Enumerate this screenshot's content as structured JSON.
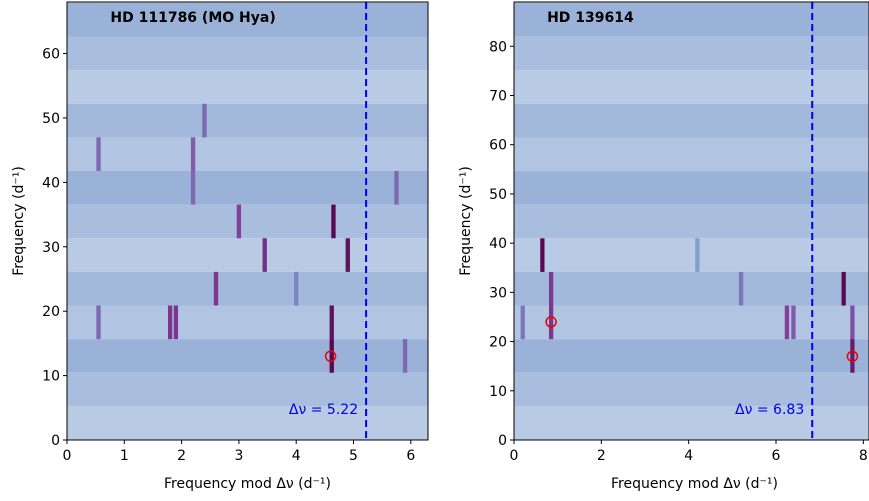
{
  "chart_data": [
    {
      "type": "echelle",
      "title": "HD 111786 (MO Hya)",
      "xlabel": "Frequency mod Δν (d⁻¹)",
      "ylabel": "Frequency (d⁻¹)",
      "xlim": [
        0,
        6.3
      ],
      "ylim": [
        0,
        68
      ],
      "xticks": [
        0,
        1,
        2,
        3,
        4,
        5,
        6
      ],
      "yticks": [
        0,
        10,
        20,
        30,
        40,
        50,
        60
      ],
      "delta_nu": 5.22,
      "delta_nu_label": "Δν = 5.22",
      "line_color": "#0000ee",
      "ridges": {
        "x": [
          4.62,
          4.62,
          1.8,
          1.9,
          0.55,
          4.9,
          3.45,
          2.6,
          4.65,
          3.0,
          2.2,
          5.75,
          0.55,
          2.2,
          2.4,
          5.9,
          4.0
        ],
        "y": [
          13.05,
          18.27,
          18.27,
          18.27,
          18.27,
          28.71,
          28.71,
          23.49,
          33.93,
          33.93,
          39.15,
          39.15,
          44.37,
          44.37,
          49.59,
          13.05,
          23.49
        ],
        "strength": [
          0.95,
          0.9,
          0.7,
          0.7,
          0.5,
          0.9,
          0.75,
          0.7,
          0.95,
          0.65,
          0.5,
          0.5,
          0.5,
          0.55,
          0.5,
          0.5,
          0.4
        ]
      },
      "circles": {
        "x": [
          4.6
        ],
        "y": [
          13
        ]
      }
    },
    {
      "type": "echelle",
      "title": "HD 139614",
      "xlabel": "Frequency mod Δν (d⁻¹)",
      "ylabel": "Frequency (d⁻¹)",
      "xlim": [
        0,
        8.13
      ],
      "ylim": [
        0,
        89
      ],
      "xticks": [
        0,
        2,
        4,
        6,
        8
      ],
      "yticks": [
        0,
        10,
        20,
        30,
        40,
        50,
        60,
        70,
        80
      ],
      "delta_nu": 6.83,
      "delta_nu_label": "Δν = 6.83",
      "line_color": "#0000ee",
      "ridges": {
        "x": [
          0.65,
          0.85,
          0.85,
          7.55,
          7.75,
          7.75,
          6.25,
          6.4,
          5.2,
          0.2,
          4.2
        ],
        "y": [
          37.565,
          30.735,
          23.905,
          30.735,
          23.905,
          17.075,
          23.905,
          23.905,
          30.735,
          23.905,
          37.565
        ],
        "strength": [
          0.95,
          0.7,
          0.7,
          0.95,
          0.6,
          0.85,
          0.65,
          0.55,
          0.45,
          0.45,
          0.3
        ]
      },
      "circles": {
        "x": [
          0.85,
          7.75
        ],
        "y": [
          24,
          17
        ]
      }
    }
  ]
}
